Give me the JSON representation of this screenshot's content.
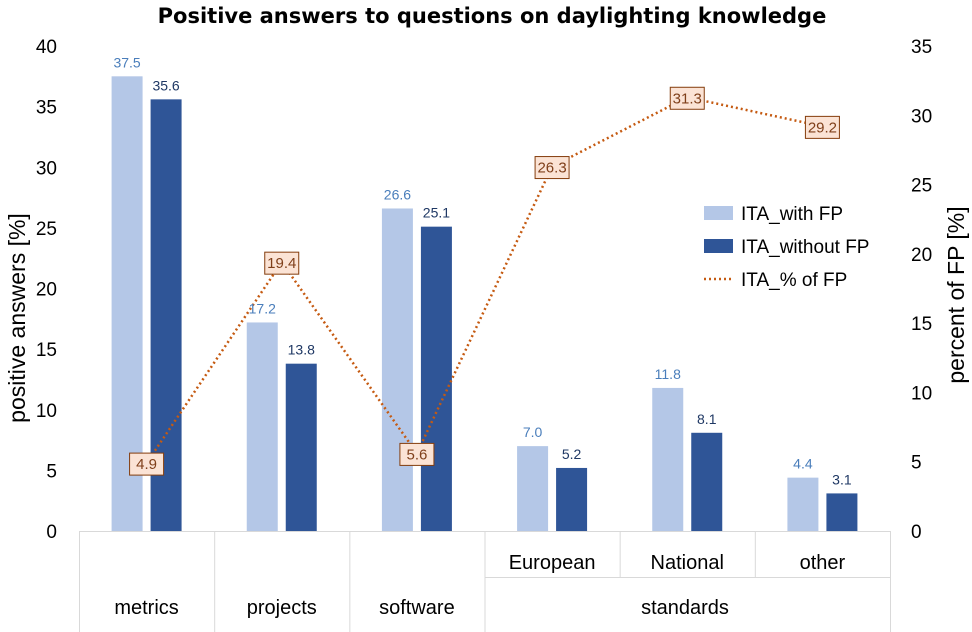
{
  "chart_data": {
    "type": "bar",
    "title": "Positive answers to questions on daylighting knowledge",
    "ylabel": "positive answers  [%]",
    "y2label": "percent of FP  [%]",
    "ylim": [
      0,
      40
    ],
    "y2lim": [
      0,
      35
    ],
    "yticks": [
      "0",
      "5",
      "10",
      "15",
      "20",
      "25",
      "30",
      "35",
      "40"
    ],
    "y2ticks": [
      "0",
      "5",
      "10",
      "15",
      "20",
      "25",
      "30",
      "35"
    ],
    "categories": [
      "metrics",
      "projects",
      "software",
      "European",
      "National",
      "other"
    ],
    "group_label": "standards",
    "series": [
      {
        "name": "ITA_with FP",
        "kind": "bar",
        "color": "#b4c7e7",
        "values": [
          37.5,
          17.2,
          26.6,
          7.0,
          11.8,
          4.4
        ],
        "labels": [
          "37.5",
          "17.2",
          "26.6",
          "7.0",
          "11.8",
          "4.4"
        ]
      },
      {
        "name": "ITA_without FP",
        "kind": "bar",
        "color": "#2f5597",
        "values": [
          35.6,
          13.8,
          25.1,
          5.2,
          8.1,
          3.1
        ],
        "labels": [
          "35.6",
          "13.8",
          "25.1",
          "5.2",
          "8.1",
          "3.1"
        ]
      },
      {
        "name": "ITA_% of FP",
        "kind": "line",
        "axis": "secondary",
        "style": "dotted",
        "color": "#c55a11",
        "values": [
          4.9,
          19.4,
          5.6,
          26.3,
          31.3,
          29.2
        ],
        "labels": [
          "4.9",
          "19.4",
          "5.6",
          "26.3",
          "31.3",
          "29.2"
        ]
      }
    ],
    "legend": "right",
    "grid": false
  }
}
